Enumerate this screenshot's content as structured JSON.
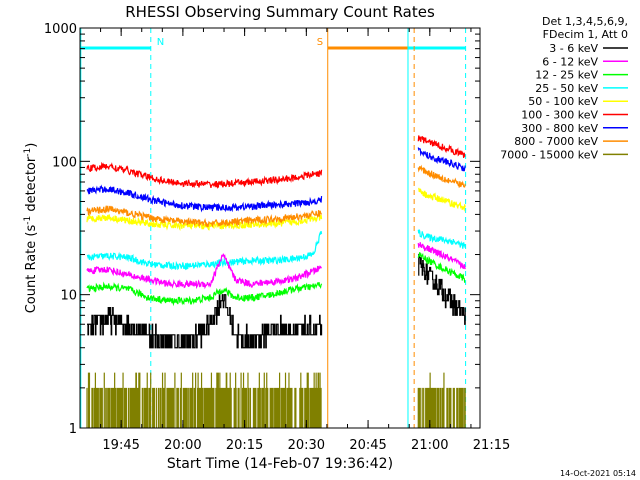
{
  "chart_data": {
    "type": "line",
    "title": "RHESSI Observing Summary Count Rates",
    "xlabel": "Start Time (14-Feb-07 19:36:42)",
    "ylabel_main": "Count Rate (s",
    "ylabel_sup1": "-1",
    "ylabel_mid": " detector",
    "ylabel_sup2": "-1",
    "ylabel_end": ")",
    "yscale": "log",
    "ylim": [
      1,
      1000
    ],
    "xlim_minutes": [
      -1.7,
      95.5
    ],
    "x_ticks": [
      {
        "label": "19:45",
        "t": 8.3
      },
      {
        "label": "20:00",
        "t": 23.3
      },
      {
        "label": "20:15",
        "t": 38.3
      },
      {
        "label": "20:30",
        "t": 53.3
      },
      {
        "label": "20:45",
        "t": 68.3
      },
      {
        "label": "21:00",
        "t": 83.3
      },
      {
        "label": "21:15",
        "t": 98.3
      }
    ],
    "y_ticks": [
      {
        "label": "1",
        "v": 1
      },
      {
        "label": "10",
        "v": 10
      },
      {
        "label": "100",
        "v": 100
      },
      {
        "label": "1000",
        "v": 1000
      }
    ],
    "legend_header": [
      "Det 1,3,4,5,6,9,",
      "FDecim 1, Att 0"
    ],
    "legend_position": "right",
    "series": [
      {
        "name": "3 - 6 keV",
        "color": "#000000",
        "x1": [
          0,
          5,
          10,
          15,
          20,
          25,
          30,
          33,
          36,
          40,
          45,
          50,
          55,
          57
        ],
        "y1": [
          5.5,
          6.5,
          6,
          5,
          4.5,
          4.5,
          6,
          10,
          5,
          4.5,
          5.5,
          5.5,
          5.5,
          5.5
        ],
        "x2": [
          80.5,
          83,
          86,
          89,
          92
        ],
        "y2": [
          17,
          14,
          11,
          8.5,
          7
        ]
      },
      {
        "name": "6 - 12 keV",
        "color": "#ff00ff",
        "x1": [
          0,
          5,
          10,
          15,
          20,
          25,
          30,
          33,
          36,
          40,
          45,
          50,
          55,
          57
        ],
        "y1": [
          15,
          15.5,
          14,
          13,
          12,
          12,
          12,
          20,
          13,
          12,
          12.5,
          13,
          15,
          16
        ],
        "x2": [
          80.5,
          83,
          86,
          89,
          92
        ],
        "y2": [
          24,
          22,
          20,
          18,
          16
        ]
      },
      {
        "name": "12 - 25 keV",
        "color": "#00ff00",
        "x1": [
          0,
          5,
          10,
          15,
          20,
          25,
          30,
          33,
          36,
          40,
          45,
          50,
          55,
          57
        ],
        "y1": [
          11,
          11.5,
          11,
          9.5,
          9,
          9,
          9.5,
          11,
          9.5,
          9.5,
          10,
          11,
          11.5,
          12
        ],
        "x2": [
          80.5,
          83,
          86,
          89,
          92
        ],
        "y2": [
          20,
          18,
          16,
          14.5,
          13
        ]
      },
      {
        "name": "25 - 50 keV",
        "color": "#00ffff",
        "x1": [
          0,
          5,
          10,
          15,
          20,
          25,
          30,
          35,
          40,
          45,
          50,
          55,
          57
        ],
        "y1": [
          19,
          19.5,
          19,
          17,
          16.5,
          16.5,
          17,
          17.5,
          18,
          18,
          18.5,
          20,
          30
        ],
        "x2": [
          80.5,
          83,
          86,
          89,
          92
        ],
        "y2": [
          29,
          27,
          26,
          25,
          23
        ]
      },
      {
        "name": "50 - 100 keV",
        "color": "#ffff00",
        "x1": [
          0,
          5,
          10,
          15,
          20,
          25,
          30,
          35,
          40,
          45,
          50,
          55,
          57
        ],
        "y1": [
          37,
          38,
          36,
          34,
          33,
          33,
          32.5,
          33,
          33.5,
          34,
          35,
          37,
          38
        ],
        "x2": [
          80.5,
          83,
          86,
          89,
          92
        ],
        "y2": [
          60,
          55,
          52,
          48,
          45
        ]
      },
      {
        "name": "100 - 300 keV",
        "color": "#ff0000",
        "x1": [
          0,
          5,
          10,
          15,
          20,
          25,
          30,
          35,
          40,
          45,
          50,
          55,
          57
        ],
        "y1": [
          88,
          92,
          85,
          76,
          70,
          68,
          67,
          68,
          70,
          72,
          75,
          80,
          82
        ],
        "x2": [
          80.5,
          83,
          86,
          89,
          92
        ],
        "y2": [
          150,
          140,
          130,
          120,
          110
        ]
      },
      {
        "name": "300 - 800 keV",
        "color": "#0000ff",
        "x1": [
          0,
          5,
          10,
          15,
          20,
          25,
          30,
          35,
          40,
          45,
          50,
          55,
          57
        ],
        "y1": [
          60,
          62,
          58,
          52,
          48,
          46,
          45,
          45,
          46,
          47,
          48,
          50,
          52
        ],
        "x2": [
          80.5,
          83,
          86,
          89,
          92
        ],
        "y2": [
          120,
          110,
          102,
          95,
          88
        ]
      },
      {
        "name": "800 - 7000 keV",
        "color": "#ff8c00",
        "x1": [
          0,
          5,
          10,
          15,
          20,
          25,
          30,
          35,
          40,
          45,
          50,
          55,
          57
        ],
        "y1": [
          42,
          44,
          41,
          38,
          36,
          35,
          34,
          35,
          36,
          37,
          38,
          40,
          41
        ],
        "x2": [
          80.5,
          83,
          86,
          89,
          92
        ],
        "y2": [
          90,
          82,
          76,
          70,
          65
        ]
      },
      {
        "name": "7000 - 15000 keV",
        "color": "#808000",
        "x1": [
          0,
          57
        ],
        "y1": [
          1.5,
          1.5
        ],
        "x2": [
          80.5,
          92
        ],
        "y2": [
          1.5,
          1.5
        ]
      }
    ],
    "annotations": [
      {
        "label": "N",
        "color": "#00ffff",
        "t": 15.5
      },
      {
        "label": "S",
        "color": "#ff8c00",
        "t": 58.5
      }
    ],
    "day_bars": [
      {
        "color": "#00ffff",
        "t0": -1.5,
        "t1": 15.5
      },
      {
        "color": "#ff8c00",
        "t0": 58.5,
        "t1": 78
      },
      {
        "color": "#00ffff",
        "t0": 78,
        "t1": 92
      }
    ],
    "solid_lines": [
      {
        "color": "#00ffff",
        "t": -1.5
      },
      {
        "color": "#ff8c00",
        "t": 58.5
      },
      {
        "color": "#00ffff",
        "t": 78
      }
    ],
    "dashed_lines": [
      {
        "color": "#00ffff",
        "t": 15.5
      },
      {
        "color": "#ff8c00",
        "t": 79.5
      },
      {
        "color": "#00ffff",
        "t": 92
      }
    ],
    "footer_date": "14-Oct-2021 05:14"
  }
}
